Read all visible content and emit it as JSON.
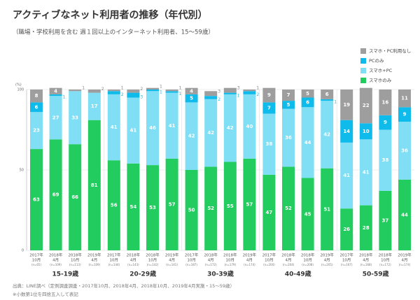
{
  "chart_data": {
    "type": "stacked_bar",
    "title": "アクティブなネット利用者の推移（年代別）",
    "subtitle": "（職場・学校利用を含む 週１回以上のインターネット利用者、15〜59歳）",
    "y_unit": "(%)",
    "groups": [
      "15-19歳",
      "20-29歳",
      "30-39歳",
      "40-49歳",
      "50-59歳"
    ],
    "periods": [
      {
        "year": "2017年",
        "month": "10月"
      },
      {
        "year": "2018年",
        "month": "4月"
      },
      {
        "year": "2018年",
        "month": "10月"
      },
      {
        "year": "2019年",
        "month": "4月"
      }
    ],
    "n": [
      "(n=65)",
      "(n=109)",
      "(n=113)",
      "(n=109)",
      "(n=144)",
      "(n=143)",
      "(n=142)",
      "(n=141)",
      "(n=187)",
      "(n=172)",
      "(n=179)",
      "(n=174)",
      "(n=200)",
      "(n=204)",
      "(n=208)",
      "(n=205)",
      "(n=167)",
      "(n=168)",
      "(n=172)",
      "(n=174)"
    ],
    "series": [
      {
        "name": "スマホのみ",
        "color": "#22cc5e",
        "values": [
          63,
          69,
          66,
          81,
          56,
          54,
          53,
          57,
          50,
          52,
          55,
          57,
          47,
          52,
          45,
          51,
          26,
          28,
          37,
          44
        ]
      },
      {
        "name": "スマホ+PC",
        "color": "#80def5",
        "values": [
          23,
          27,
          33,
          17,
          41,
          41,
          46,
          41,
          42,
          42,
          42,
          40,
          38,
          36,
          44,
          42,
          41,
          41,
          38,
          36
        ]
      },
      {
        "name": "PCのみ",
        "color": "#0fbbeb",
        "values": [
          6,
          1,
          0,
          0,
          2,
          3,
          1,
          1,
          5,
          2,
          1,
          2,
          7,
          5,
          6,
          1,
          14,
          10,
          9,
          9
        ]
      },
      {
        "name": "スマホ・PC利用なし",
        "color": "#9e9e9e",
        "values": [
          8,
          4,
          1,
          2,
          1,
          2,
          1,
          1,
          4,
          3,
          3,
          1,
          9,
          7,
          5,
          6,
          19,
          22,
          16,
          11
        ]
      }
    ],
    "ylim": [
      0,
      100
    ],
    "yticks": [
      0,
      50,
      100
    ],
    "notes": [
      "出典：LINE調べ（定例調査調査・2017年10月、2018年4月、2018年10月、2019年4月実施・15〜59歳）",
      "※小数第1位を四捨五入して表記"
    ]
  }
}
